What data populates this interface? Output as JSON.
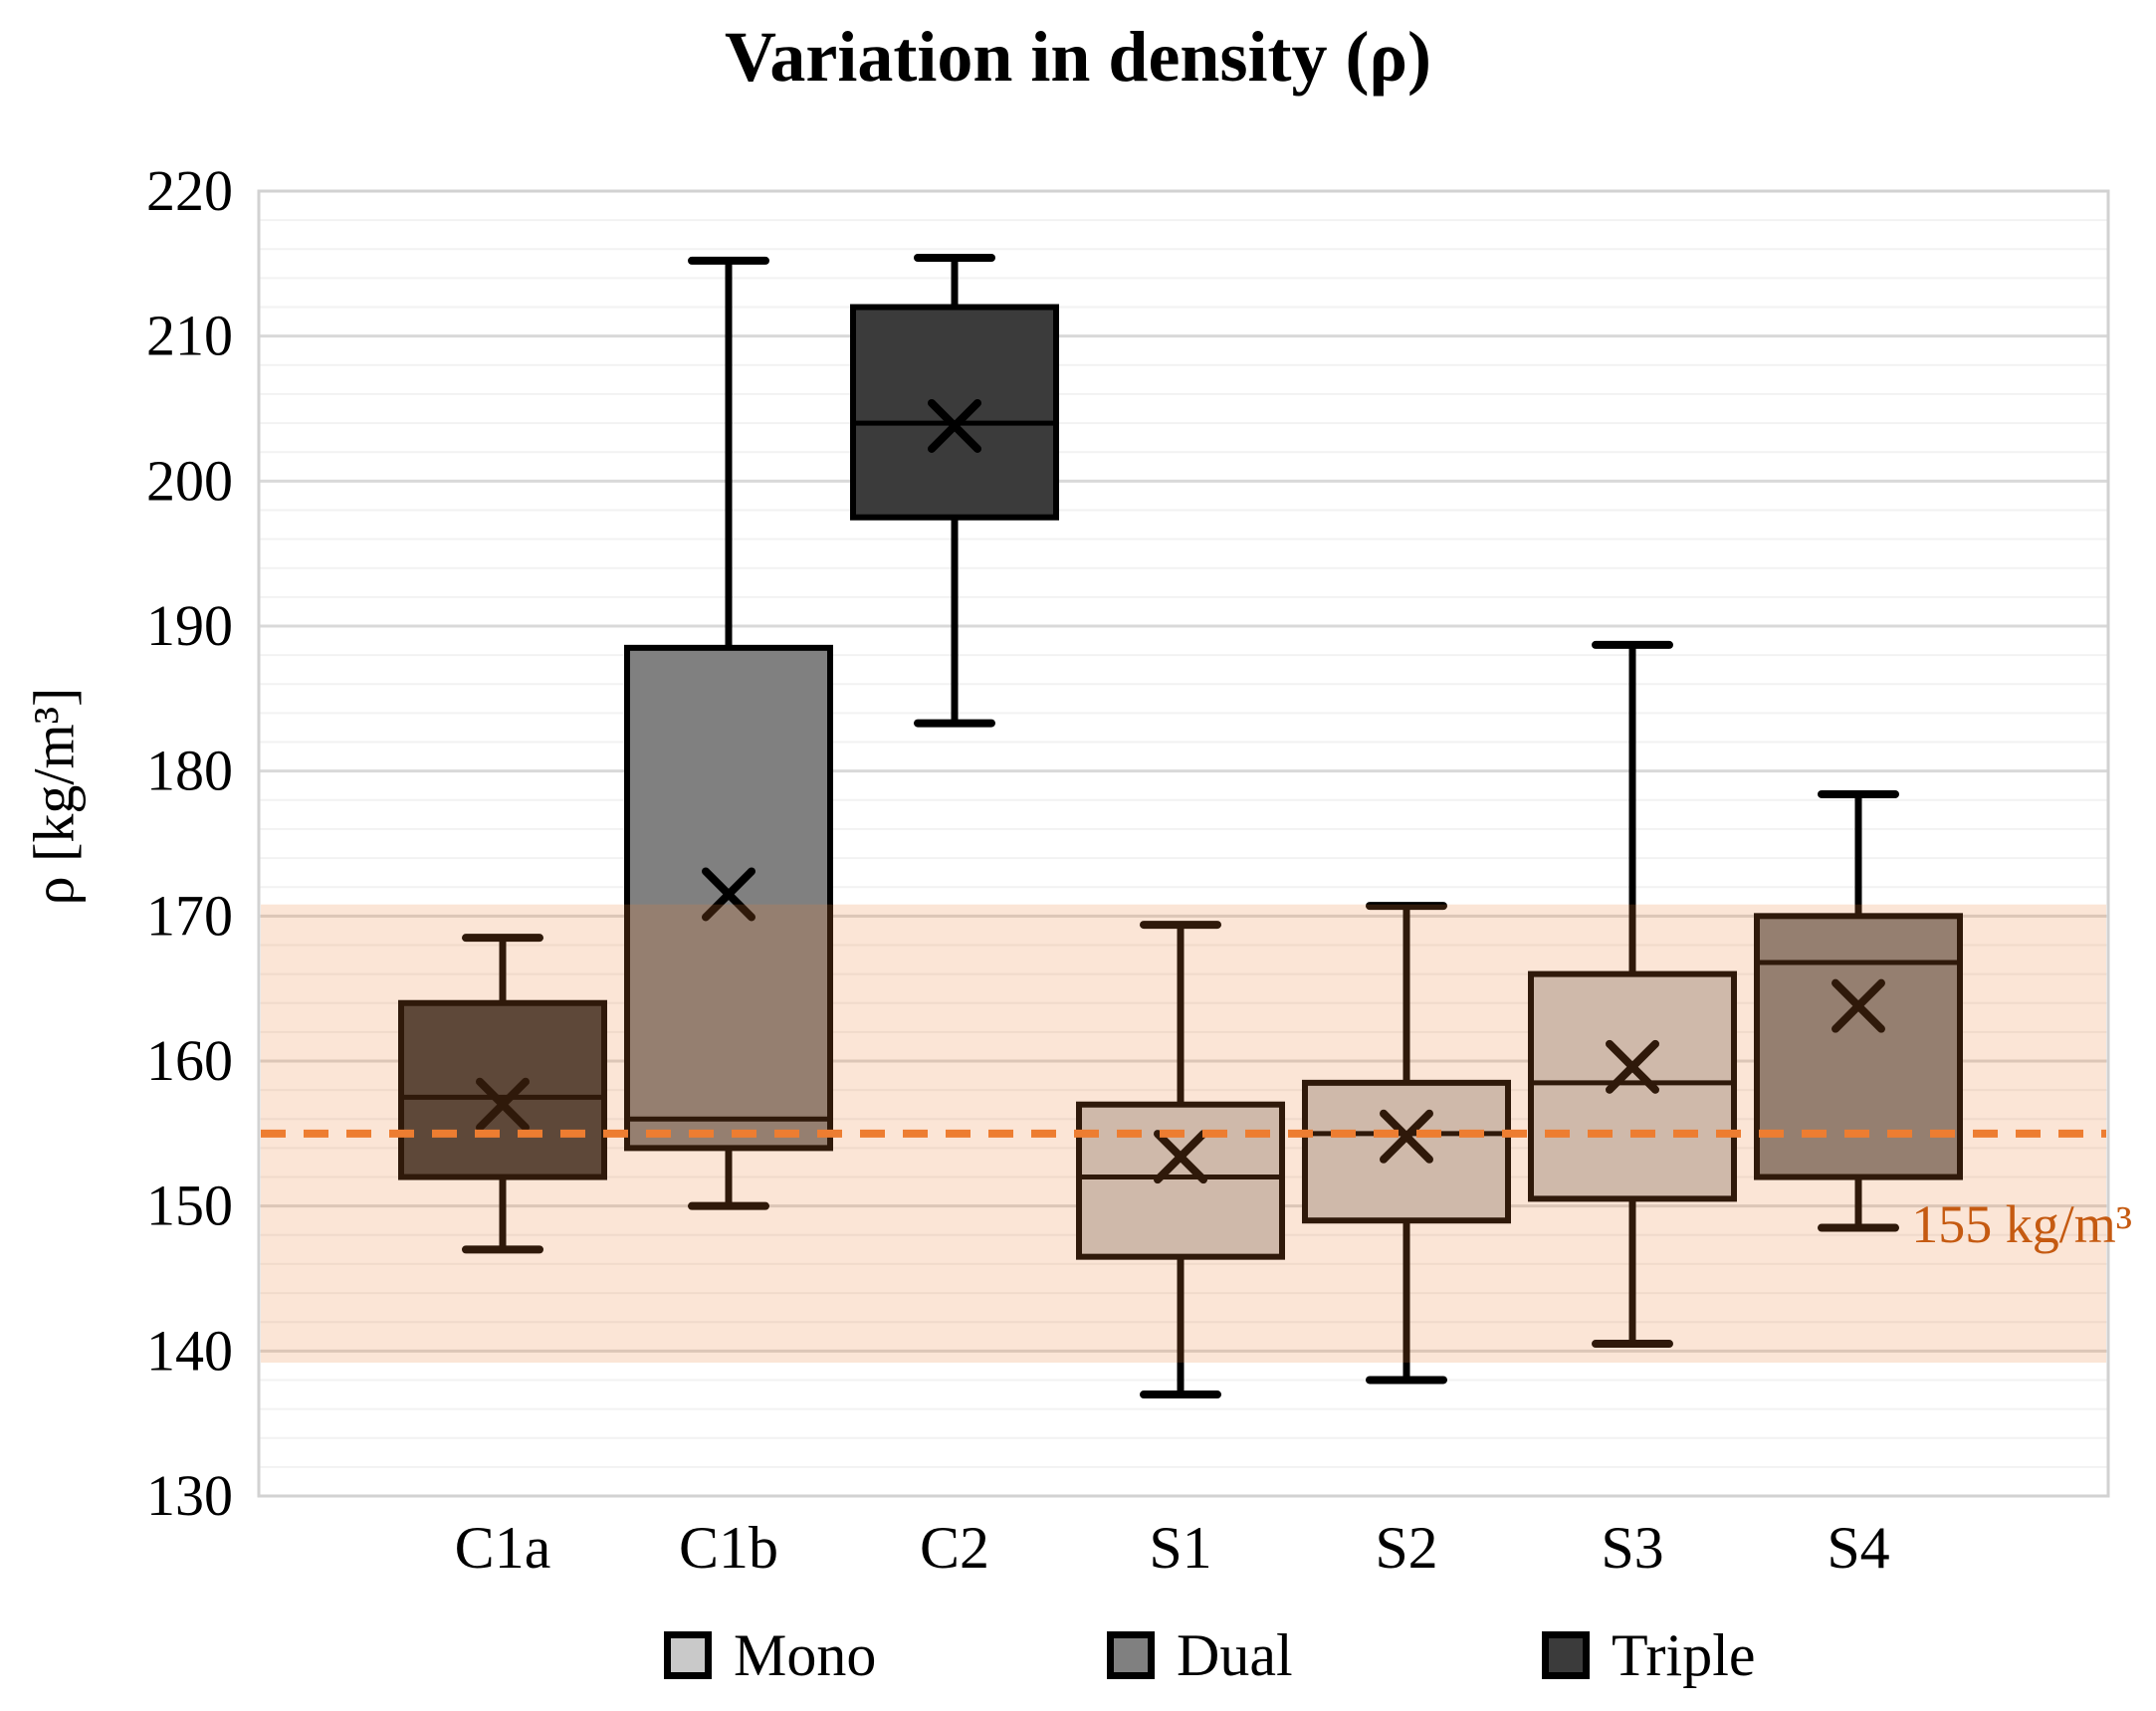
{
  "title": "Variation in density (ρ)",
  "y_axis": {
    "title": "ρ [kg/m³]",
    "min": 130,
    "max": 220,
    "major_step": 10,
    "minor_step": 2,
    "tick_labels": [
      "220",
      "210",
      "200",
      "190",
      "180",
      "170",
      "160",
      "150",
      "140",
      "130"
    ]
  },
  "x_axis": {
    "categories": [
      "C1a",
      "C1b",
      "C2",
      "S1",
      "S2",
      "S3",
      "S4"
    ]
  },
  "reference_line": {
    "value": 155,
    "label": "155 kg/m³",
    "style": "dashed"
  },
  "reference_band": {
    "from": 139.2,
    "to": 170.8
  },
  "legend": {
    "position": "bottom",
    "items": [
      {
        "label": "Mono",
        "color": "#C9C9C9"
      },
      {
        "label": "Dual",
        "color": "#808080"
      },
      {
        "label": "Triple",
        "color": "#3B3B3B"
      }
    ]
  },
  "colors": {
    "mono_fill": "#C9C9C9",
    "dual_fill": "#808080",
    "triple_fill": "#3B3B3B",
    "box_border": "#000000",
    "whisker": "#000000",
    "mean_marker": "#000000",
    "band_fill": "#ED7D31",
    "band_opacity": 0.2,
    "ref_line": "#ED7D31",
    "ref_label": "#C55A11",
    "grid_major": "#D9D9D9",
    "grid_minor": "#F2F2F2",
    "frame": "#D2D2D2",
    "text": "#000000"
  },
  "chart_data": {
    "type": "box",
    "title": "Variation in density (ρ)",
    "ylabel": "ρ [kg/m³]",
    "xlabel": "",
    "ylim": [
      130,
      220
    ],
    "grid": "horizontal, minor every 2, major every 10",
    "legend_position": "bottom",
    "mean_marker": "x",
    "reference_line_value": 155,
    "reference_band": [
      139.2,
      170.8
    ],
    "categories": [
      "C1a",
      "C1b",
      "C2",
      "S1",
      "S2",
      "S3",
      "S4"
    ],
    "boxes": [
      {
        "label": "C1a",
        "group": "Triple",
        "whisker_low": 147.0,
        "q1": 152.0,
        "median": 157.5,
        "q3": 164.0,
        "whisker_high": 168.5,
        "mean": 157.0
      },
      {
        "label": "C1b",
        "group": "Dual",
        "whisker_low": 150.0,
        "q1": 154.0,
        "median": 156.0,
        "q3": 188.5,
        "whisker_high": 215.2,
        "mean": 171.5
      },
      {
        "label": "C2",
        "group": "Triple",
        "whisker_low": 183.3,
        "q1": 197.5,
        "median": 204.0,
        "q3": 212.0,
        "whisker_high": 215.4,
        "mean": 203.8
      },
      {
        "label": "S1",
        "group": "Mono",
        "whisker_low": 137.0,
        "q1": 146.5,
        "median": 152.0,
        "q3": 157.0,
        "whisker_high": 169.4,
        "mean": 153.4
      },
      {
        "label": "S2",
        "group": "Mono",
        "whisker_low": 138.0,
        "q1": 149.0,
        "median": 155.0,
        "q3": 158.5,
        "whisker_high": 170.7,
        "mean": 154.8
      },
      {
        "label": "S3",
        "group": "Mono",
        "whisker_low": 140.5,
        "q1": 150.5,
        "median": 158.5,
        "q3": 166.0,
        "whisker_high": 188.7,
        "mean": 159.6
      },
      {
        "label": "S4",
        "group": "Dual",
        "whisker_low": 148.5,
        "q1": 152.0,
        "median": 166.8,
        "q3": 170.0,
        "whisker_high": 178.4,
        "mean": 163.8
      }
    ]
  }
}
